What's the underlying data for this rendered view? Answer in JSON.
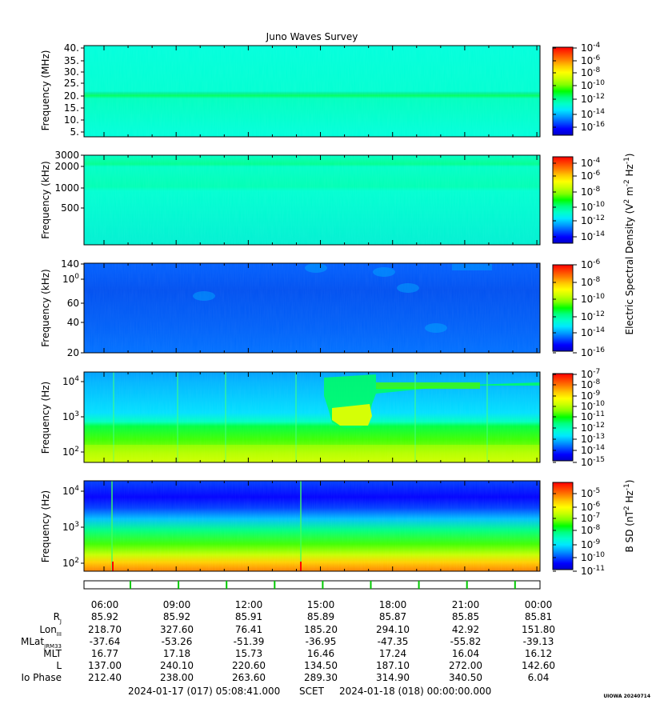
{
  "title": "Juno Waves Survey",
  "cbar_colors": [
    "#0000c8",
    "#0000ff",
    "#0050ff",
    "#00a0ff",
    "#00e8ff",
    "#00ffc8",
    "#00ff80",
    "#00ff00",
    "#80ff00",
    "#c8ff00",
    "#ffff00",
    "#ffc800",
    "#ff8000",
    "#ff4000",
    "#ff0000"
  ],
  "chart_data": [
    {
      "type": "heatmap",
      "panel": 1,
      "ylabel": "Frequency (MHz)",
      "yticks": [
        "40.",
        "35.",
        "30.",
        "25.",
        "20.",
        "15.",
        "10.",
        "5."
      ],
      "ylim": [
        4,
        41
      ],
      "colorbar_ticks": [
        "10-4",
        "10-6",
        "10-8",
        "10-10",
        "10-12",
        "10-14",
        "10-16"
      ],
      "colorbar_range": [
        "1e-17",
        "1e-4"
      ]
    },
    {
      "type": "heatmap",
      "panel": 2,
      "ylabel": "Frequency (kHz)",
      "yticks": [
        "3000",
        "2000",
        "1000",
        "500"
      ],
      "ylim": [
        140,
        3000
      ],
      "yscale": "log",
      "colorbar_ticks": [
        "10-4",
        "10-6",
        "10-8",
        "10-10",
        "10-12",
        "10-14"
      ],
      "colorbar_range": [
        "1e-15",
        "1e-3"
      ],
      "colorbar_label": "Electric Spectral Density (V2 m-2 Hz-1)"
    },
    {
      "type": "heatmap",
      "panel": 3,
      "ylabel": "Frequency (kHz)",
      "yticks": [
        "140",
        "100",
        "60",
        "40",
        "20"
      ],
      "ylim": [
        20,
        140
      ],
      "yscale": "log",
      "colorbar_ticks": [
        "10-6",
        "10-8",
        "10-10",
        "10-12",
        "10-14",
        "10-16"
      ],
      "colorbar_range": [
        "1e-16",
        "1e-6"
      ]
    },
    {
      "type": "heatmap",
      "panel": 4,
      "ylabel": "Frequency (Hz)",
      "yticks": [
        "104",
        "103",
        "102"
      ],
      "ylim": [
        50,
        20000
      ],
      "yscale": "log",
      "colorbar_ticks": [
        "10-7",
        "10-8",
        "10-9",
        "10-10",
        "10-11",
        "10-12",
        "10-13",
        "10-14",
        "10-15"
      ],
      "colorbar_range": [
        "1e-15",
        "1e-7"
      ]
    },
    {
      "type": "heatmap",
      "panel": 5,
      "ylabel": "Frequency (Hz)",
      "yticks": [
        "104",
        "103",
        "102"
      ],
      "ylim": [
        50,
        20000
      ],
      "yscale": "log",
      "colorbar_ticks": [
        "10-5",
        "10-6",
        "10-7",
        "10-8",
        "10-9",
        "10-10",
        "10-11"
      ],
      "colorbar_range": [
        "1e-11",
        "1e-4.5"
      ],
      "colorbar_label": "B SD (nT2 Hz-1)"
    }
  ],
  "ephemeris": {
    "times": [
      "06:00",
      "09:00",
      "12:00",
      "15:00",
      "18:00",
      "21:00",
      "00:00"
    ],
    "rows": [
      {
        "label": "RJ",
        "values": [
          "85.92",
          "85.92",
          "85.91",
          "85.89",
          "85.87",
          "85.85",
          "85.81"
        ]
      },
      {
        "label": "LonIII",
        "values": [
          "218.70",
          "327.60",
          "76.41",
          "185.20",
          "294.10",
          "42.92",
          "151.80"
        ]
      },
      {
        "label": "MLatJRM33",
        "values": [
          "-37.64",
          "-53.26",
          "-51.39",
          "-36.95",
          "-47.35",
          "-55.82",
          "-39.13"
        ]
      },
      {
        "label": "MLT",
        "values": [
          "16.77",
          "17.18",
          "15.73",
          "16.46",
          "17.24",
          "16.04",
          "16.12"
        ]
      },
      {
        "label": "L",
        "values": [
          "137.00",
          "240.10",
          "220.60",
          "134.50",
          "187.10",
          "272.00",
          "142.60"
        ]
      },
      {
        "label": "Io Phase",
        "values": [
          "212.40",
          "238.00",
          "263.60",
          "289.30",
          "314.90",
          "340.50",
          "6.04"
        ]
      }
    ]
  },
  "time_range": {
    "start": "2024-01-17 (017) 05:08:41.000",
    "mid": "SCET",
    "end": "2024-01-18 (018) 00:00:00.000"
  },
  "footer_tag": "UIOWA 20240714"
}
